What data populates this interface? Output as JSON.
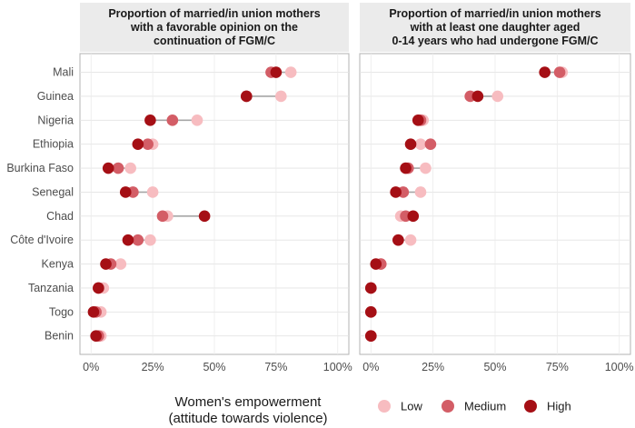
{
  "chart_data": {
    "type": "dumbbell",
    "countries": [
      "Mali",
      "Guinea",
      "Nigeria",
      "Ethiopia",
      "Burkina Faso",
      "Senegal",
      "Chad",
      "Côte d'Ivoire",
      "Kenya",
      "Tanzania",
      "Togo",
      "Benin"
    ],
    "x_ticks": [
      "0%",
      "25%",
      "50%",
      "75%",
      "100%"
    ],
    "xlim": [
      0,
      1
    ],
    "panels": [
      {
        "title_lines": [
          "Proportion of married/in union mothers",
          "with a favorable opinion on the",
          "continuation of FGM/C"
        ],
        "values": {
          "Low": [
            0.81,
            0.77,
            0.43,
            0.25,
            0.16,
            0.25,
            0.31,
            0.24,
            0.12,
            0.05,
            0.04,
            0.04
          ],
          "Medium": [
            0.73,
            0.63,
            0.33,
            0.23,
            0.11,
            0.17,
            0.29,
            0.19,
            0.08,
            0.03,
            0.02,
            0.03
          ],
          "High": [
            0.75,
            0.63,
            0.24,
            0.19,
            0.07,
            0.14,
            0.46,
            0.15,
            0.06,
            0.03,
            0.01,
            0.02
          ]
        }
      },
      {
        "title_lines": [
          "Proportion of married/in union mothers",
          "with at least one daughter aged",
          "0-14 years who had undergone FGM/C"
        ],
        "values": {
          "Low": [
            0.77,
            0.51,
            0.21,
            0.2,
            0.22,
            0.2,
            0.12,
            0.16,
            0.04,
            0.0,
            0.0,
            0.0
          ],
          "Medium": [
            0.76,
            0.4,
            0.2,
            0.24,
            0.15,
            0.13,
            0.14,
            0.11,
            0.04,
            0.0,
            0.0,
            0.0
          ],
          "High": [
            0.7,
            0.43,
            0.19,
            0.16,
            0.14,
            0.1,
            0.17,
            0.11,
            0.02,
            0.0,
            0.0,
            0.0
          ]
        }
      }
    ],
    "legend": {
      "title_lines": [
        "Women's empowerment",
        "(attitude towards violence)"
      ],
      "items": [
        {
          "key": "Low",
          "label": "Low",
          "color": "#f7bcc0"
        },
        {
          "key": "Medium",
          "label": "Medium",
          "color": "#d35d66"
        },
        {
          "key": "High",
          "label": "High",
          "color": "#a50f15"
        }
      ],
      "position": "bottom"
    },
    "segment_color": "#a6a6a6"
  }
}
